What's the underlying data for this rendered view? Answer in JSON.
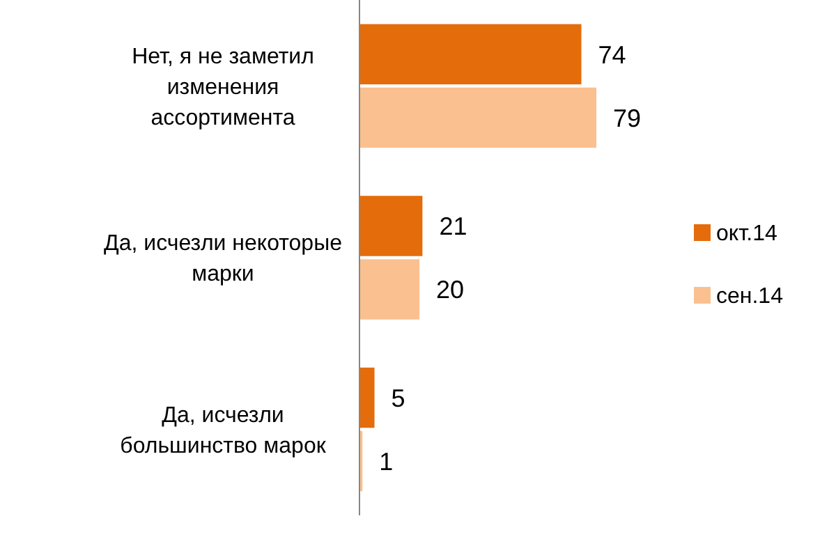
{
  "chart_data": {
    "type": "bar",
    "orientation": "horizontal",
    "categories": [
      "Нет, я не заметил\nизменения\nассортимента",
      "Да, исчезли некоторые\nмарки",
      "Да, исчезли\nбольшинство марок"
    ],
    "series": [
      {
        "name": "окт.14",
        "color": "#e46c0a",
        "values": [
          74,
          21,
          5
        ]
      },
      {
        "name": "сен.14",
        "color": "#fac090",
        "values": [
          79,
          20,
          1
        ]
      }
    ],
    "data_labels": true,
    "legend": "right"
  }
}
